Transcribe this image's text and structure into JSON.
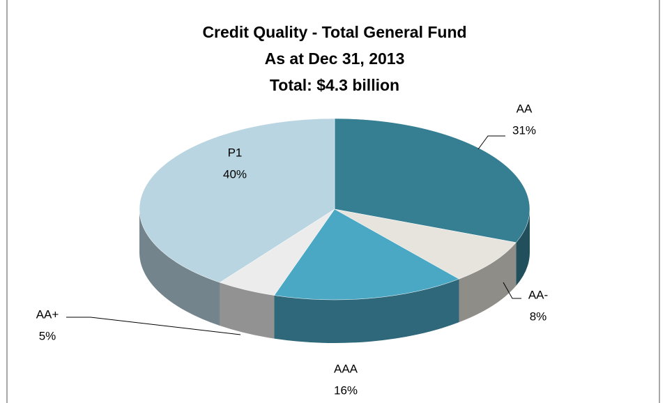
{
  "chart_data": {
    "type": "pie",
    "title": [
      "Credit Quality - Total General Fund",
      "As at Dec 31, 2013",
      "Total: $4.3 billion"
    ],
    "categories": [
      "AA",
      "AA-",
      "AAA",
      "AA+",
      "P1"
    ],
    "values": [
      31,
      8,
      16,
      5,
      40
    ],
    "value_labels": [
      "31%",
      "8%",
      "16%",
      "5%",
      "40%"
    ],
    "colors": [
      "#367f92",
      "#e6e4dc",
      "#4aa8c4",
      "#ececec",
      "#b9d5e1"
    ]
  }
}
